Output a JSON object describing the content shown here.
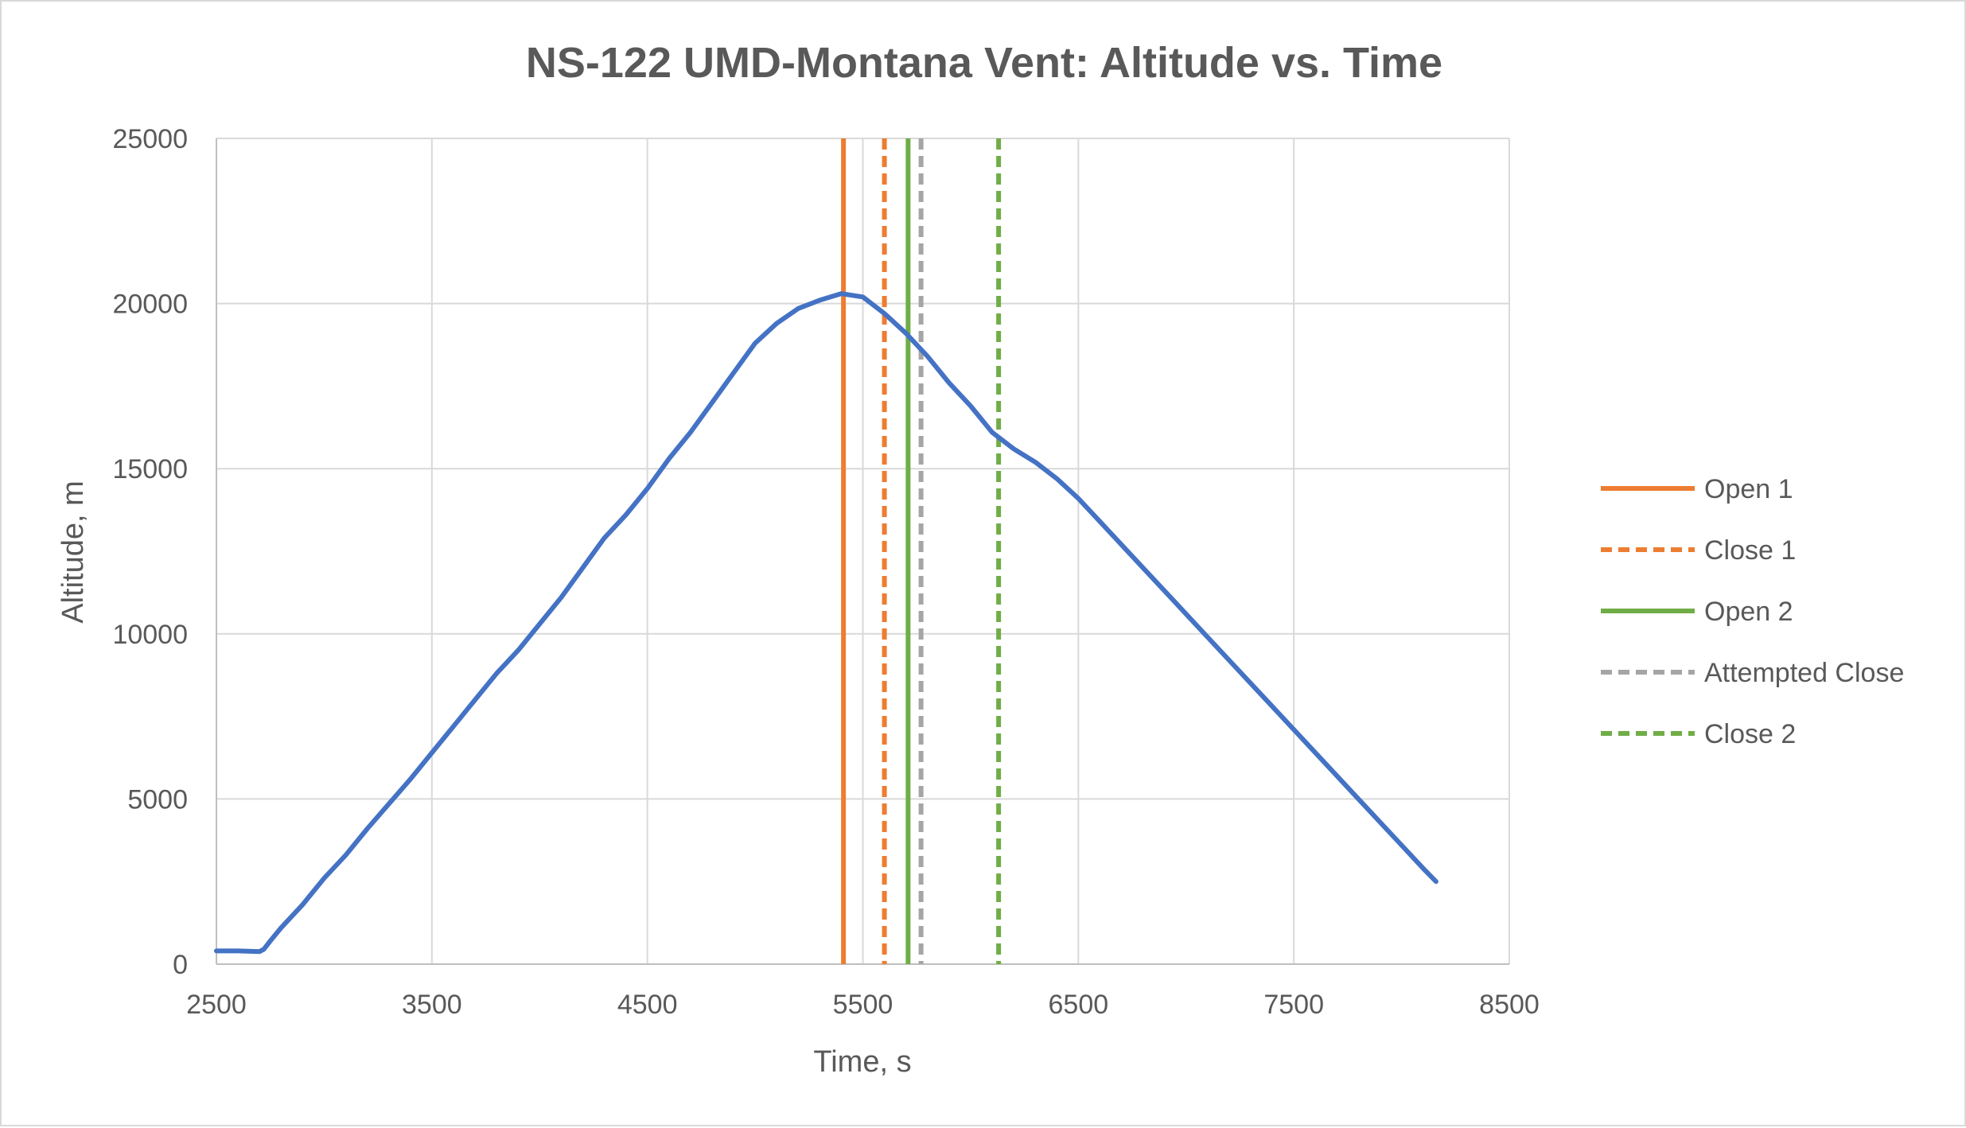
{
  "chart_data": {
    "type": "line",
    "title": "NS-122 UMD-Montana Vent: Altitude vs. Time",
    "xlabel": "Time, s",
    "ylabel": "Altitude, m",
    "xlim": [
      2500,
      8500
    ],
    "ylim": [
      0,
      25000
    ],
    "x_ticks": [
      2500,
      3500,
      4500,
      5500,
      6500,
      7500,
      8500
    ],
    "y_ticks": [
      0,
      5000,
      10000,
      15000,
      20000,
      25000
    ],
    "grid": true,
    "legend_position": "right",
    "series": [
      {
        "type": "line",
        "color": "#4472c4",
        "x": [
          2500,
          2600,
          2700,
          2720,
          2750,
          2800,
          2900,
          3000,
          3100,
          3200,
          3300,
          3400,
          3500,
          3600,
          3700,
          3800,
          3900,
          4000,
          4100,
          4200,
          4300,
          4400,
          4500,
          4600,
          4700,
          4800,
          4900,
          5000,
          5100,
          5200,
          5300,
          5400,
          5500,
          5600,
          5700,
          5800,
          5900,
          6000,
          6100,
          6200,
          6300,
          6400,
          6500,
          6600,
          6700,
          6800,
          6900,
          7000,
          7100,
          7200,
          7300,
          7400,
          7500,
          7600,
          7700,
          7800,
          7900,
          8000,
          8100,
          8160
        ],
        "y": [
          400,
          400,
          380,
          450,
          700,
          1100,
          1800,
          2600,
          3300,
          4100,
          4850,
          5600,
          6400,
          7200,
          8000,
          8800,
          9500,
          10300,
          11100,
          12000,
          12900,
          13600,
          14400,
          15300,
          16100,
          17000,
          17900,
          18800,
          19400,
          19850,
          20100,
          20300,
          20200,
          19700,
          19100,
          18400,
          17600,
          16900,
          16100,
          15600,
          15200,
          14700,
          14100,
          13400,
          12700,
          12000,
          11300,
          10600,
          9900,
          9200,
          8500,
          7800,
          7100,
          6400,
          5700,
          5000,
          4300,
          3600,
          2900,
          2500
        ]
      }
    ],
    "vertical_lines": [
      {
        "name": "Open 1",
        "x": 5410,
        "color": "#ed7d31",
        "style": "solid"
      },
      {
        "name": "Close 1",
        "x": 5600,
        "color": "#ed7d31",
        "style": "dashed"
      },
      {
        "name": "Open 2",
        "x": 5710,
        "color": "#70ad47",
        "style": "solid"
      },
      {
        "name": "Attempted Close",
        "x": 5770,
        "color": "#a5a5a5",
        "style": "dashed"
      },
      {
        "name": "Close 2",
        "x": 6130,
        "color": "#70ad47",
        "style": "dashed"
      }
    ]
  }
}
